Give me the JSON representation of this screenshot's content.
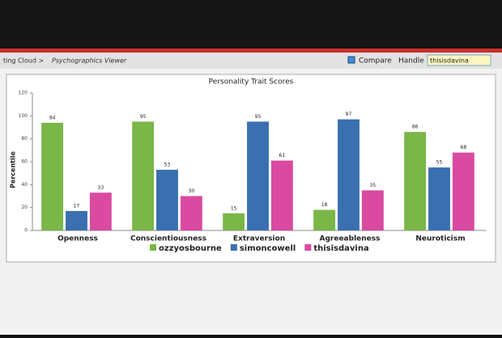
{
  "ui": {
    "breadcrumb": "ting Cloud >",
    "page": "Psychographics Viewer",
    "compare": "Compare",
    "handle": "Handle",
    "handle_value": "thisisdavina"
  },
  "chart_data": {
    "type": "bar",
    "title": "Personality Trait Scores",
    "y_label": "Percentile",
    "categories": [
      "Openness",
      "Conscientiousness",
      "Extraversion",
      "Agreeableness",
      "Neuroticism"
    ],
    "series": [
      {
        "name": "ozzyosbourne",
        "color": "#7ab648",
        "values": [
          94,
          95,
          15,
          18,
          86
        ]
      },
      {
        "name": "simoncowell",
        "color": "#3a6fb0",
        "values": [
          17,
          53,
          95,
          97,
          55
        ]
      },
      {
        "name": "thisisdavina",
        "color": "#d94aa0",
        "values": [
          33,
          30,
          61,
          35,
          68
        ]
      }
    ],
    "ylim": [
      0,
      120
    ],
    "yticks": [
      0,
      20,
      40,
      60,
      80,
      100,
      120
    ],
    "grid": false
  }
}
